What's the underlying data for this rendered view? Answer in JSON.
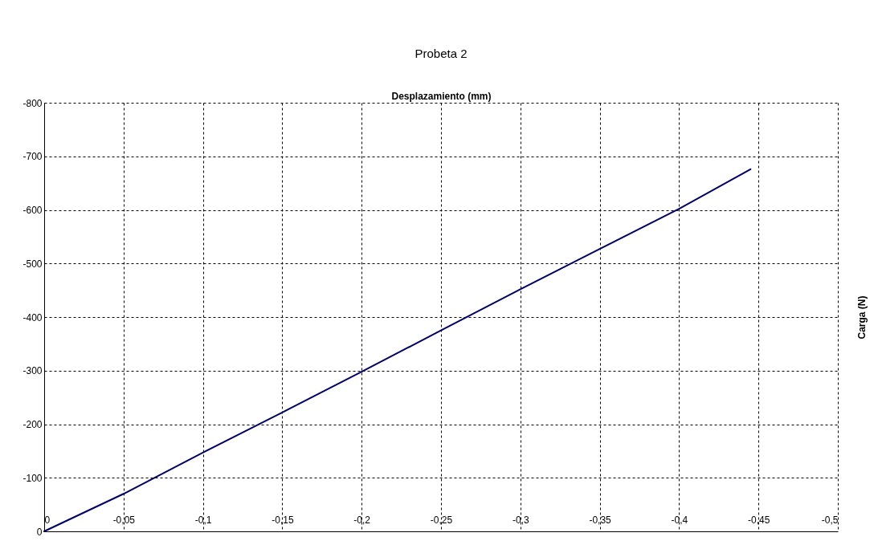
{
  "chart_data": {
    "type": "line",
    "title": "Probeta 2",
    "xlabel": "Desplazamiento (mm)",
    "ylabel": "Carga (N)",
    "x": [
      0,
      -0.05,
      -0.1,
      -0.15,
      -0.2,
      -0.25,
      -0.3,
      -0.35,
      -0.4,
      -0.445
    ],
    "series": [
      {
        "color": "#000066",
        "values": [
          0,
          -70,
          -147,
          -222,
          -298,
          -375,
          -452,
          -527,
          -602,
          -676
        ]
      }
    ],
    "xlim": [
      0,
      -0.5
    ],
    "xticks": [
      0,
      {
        "value": -0.05,
        "label": "-0,05"
      },
      {
        "value": -0.1,
        "label": "-0,1"
      },
      {
        "value": -0.15,
        "label": "-0,15"
      },
      {
        "value": -0.2,
        "label": "-0,2"
      },
      {
        "value": -0.25,
        "label": "-0,25"
      },
      {
        "value": -0.3,
        "label": "-0,3"
      },
      {
        "value": -0.35,
        "label": "-0,35"
      },
      {
        "value": -0.4,
        "label": "-0,4"
      },
      {
        "value": -0.45,
        "label": "-0,45"
      },
      {
        "value": -0.5,
        "label": "-0,5"
      }
    ],
    "ylim": [
      0,
      -800
    ],
    "yticks": [
      0,
      {
        "value": -100,
        "label": "-100"
      },
      {
        "value": -200,
        "label": "-200"
      },
      {
        "value": -300,
        "label": "-300"
      },
      {
        "value": -400,
        "label": "-400"
      },
      {
        "value": -500,
        "label": "-500"
      },
      {
        "value": -600,
        "label": "-600"
      },
      {
        "value": -700,
        "label": "-700"
      },
      {
        "value": -800,
        "label": "-800"
      }
    ],
    "grid": true,
    "marker": "none",
    "line_style": "solid"
  }
}
